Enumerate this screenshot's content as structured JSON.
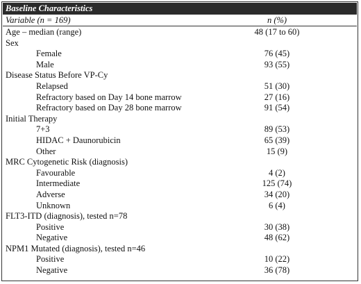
{
  "table": {
    "title": "Baseline Characteristics",
    "header_variable": "Variable (n = 169)",
    "header_value": "n (%)",
    "rows": [
      {
        "label": "Age – median (range)",
        "value": "48 (17 to 60)",
        "indent": false
      },
      {
        "label": "Sex",
        "value": "",
        "indent": false
      },
      {
        "label": "Female",
        "value": "76 (45)",
        "indent": true
      },
      {
        "label": "Male",
        "value": "93 (55)",
        "indent": true
      },
      {
        "label": "Disease Status Before VP-Cy",
        "value": "",
        "indent": false
      },
      {
        "label": "Relapsed",
        "value": "51 (30)",
        "indent": true
      },
      {
        "label": "Refractory based on Day 14 bone marrow",
        "value": "27 (16)",
        "indent": true
      },
      {
        "label": "Refractory based on Day 28 bone marrow",
        "value": "91 (54)",
        "indent": true
      },
      {
        "label": "Initial Therapy",
        "value": "",
        "indent": false
      },
      {
        "label": "7+3",
        "value": "89 (53)",
        "indent": true
      },
      {
        "label": "HIDAC + Daunorubicin",
        "value": "65 (39)",
        "indent": true
      },
      {
        "label": "Other",
        "value": "15 (9)",
        "indent": true
      },
      {
        "label": "MRC Cytogenetic Risk (diagnosis)",
        "value": "",
        "indent": false
      },
      {
        "label": "Favourable",
        "value": "4 (2)",
        "indent": true
      },
      {
        "label": "Intermediate",
        "value": "125 (74)",
        "indent": true
      },
      {
        "label": "Adverse",
        "value": "34 (20)",
        "indent": true
      },
      {
        "label": "Unknown",
        "value": "6 (4)",
        "indent": true
      },
      {
        "label": "FLT3-ITD (diagnosis), tested n=78",
        "value": "",
        "indent": false
      },
      {
        "label": "Positive",
        "value": "30 (38)",
        "indent": true
      },
      {
        "label": "Negative",
        "value": "48 (62)",
        "indent": true
      },
      {
        "label": "NPM1 Mutated (diagnosis), tested n=46",
        "value": "",
        "indent": false
      },
      {
        "label": "Positive",
        "value": "10 (22)",
        "indent": true
      },
      {
        "label": "Negative",
        "value": "36 (78)",
        "indent": true
      }
    ]
  }
}
